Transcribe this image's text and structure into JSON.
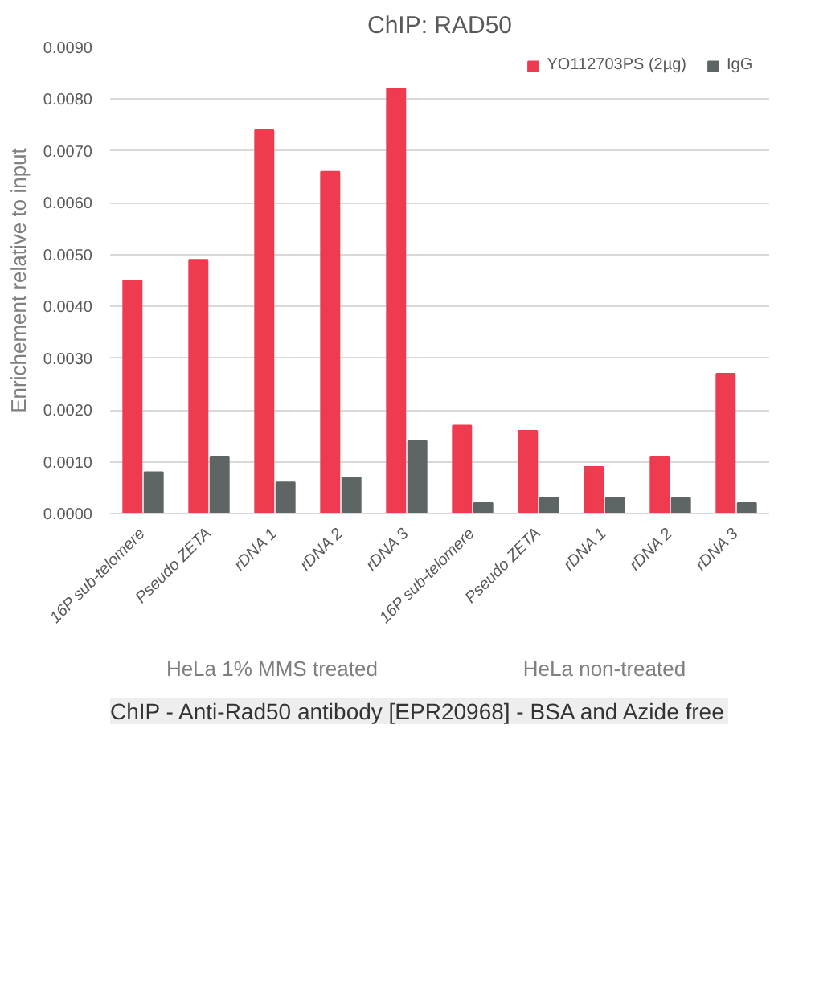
{
  "chart_data": {
    "type": "bar",
    "title": "ChIP: RAD50",
    "ylabel": "Enrichement relative to input",
    "categories": [
      "16P sub-telomere",
      "Pseudo ZETA",
      "rDNA 1",
      "rDNA 2",
      "rDNA 3",
      "16P sub-telomere",
      "Pseudo ZETA",
      "rDNA 1",
      "rDNA 2",
      "rDNA 3"
    ],
    "series": [
      {
        "name": "YO112703PS (2µg)",
        "color": "#ee3b4f",
        "values": [
          0.0045,
          0.0049,
          0.0074,
          0.0066,
          0.0082,
          0.0017,
          0.0016,
          0.0009,
          0.0011,
          0.0027
        ]
      },
      {
        "name": "IgG",
        "color": "#5e6565",
        "values": [
          0.0008,
          0.0011,
          0.0006,
          0.0007,
          0.0014,
          0.0002,
          0.0003,
          0.0003,
          0.0003,
          0.0002
        ]
      }
    ],
    "ylim": [
      0,
      0.009
    ],
    "yticks": [
      {
        "value": 0,
        "label": "0.0000"
      },
      {
        "value": 0.001,
        "label": "0.0010"
      },
      {
        "value": 0.002,
        "label": "0.0020"
      },
      {
        "value": 0.003,
        "label": "0.0030"
      },
      {
        "value": 0.004,
        "label": "0.0040"
      },
      {
        "value": 0.005,
        "label": "0.0050"
      },
      {
        "value": 0.006,
        "label": "0.0060"
      },
      {
        "value": 0.007,
        "label": "0.0070"
      },
      {
        "value": 0.008,
        "label": "0.0080"
      },
      {
        "value": 0.009,
        "label": "0.0090"
      }
    ],
    "grid": "y",
    "legend": "top right",
    "annotations": [
      "HeLa  1% MMS treated",
      "HeLa non-treated",
      "ChIP - Anti-Rad50 antibody [EPR20968] - BSA and Azide free"
    ]
  }
}
